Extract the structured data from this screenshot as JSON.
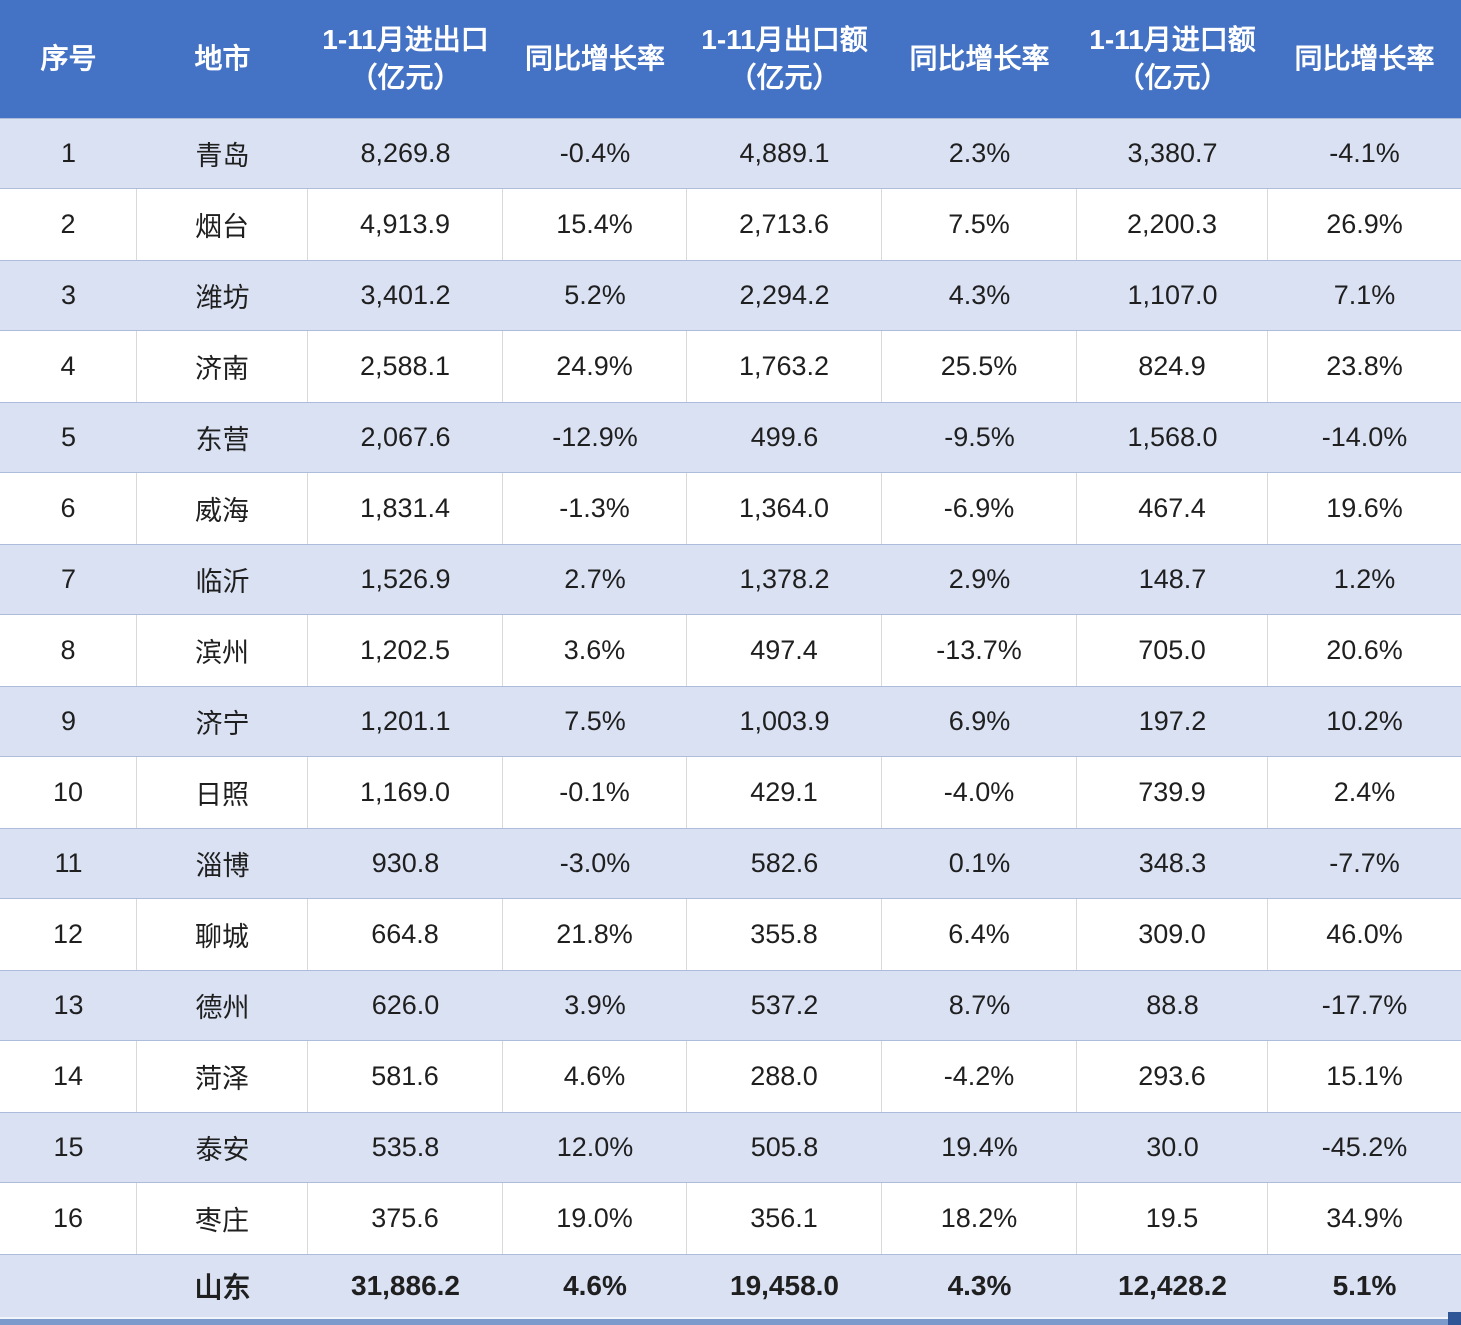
{
  "chart_data": {
    "type": "table",
    "title": "",
    "header": [
      {
        "line1": "序号",
        "line2": ""
      },
      {
        "line1": "地市",
        "line2": ""
      },
      {
        "line1": "1-11月进出口",
        "line2": "（亿元）"
      },
      {
        "line1": "同比增长率",
        "line2": ""
      },
      {
        "line1": "1-11月出口额",
        "line2": "（亿元）"
      },
      {
        "line1": "同比增长率",
        "line2": ""
      },
      {
        "line1": "1-11月进口额",
        "line2": "（亿元）"
      },
      {
        "line1": "同比增长率",
        "line2": ""
      }
    ],
    "rows": [
      [
        "1",
        "青岛",
        "8,269.8",
        "-0.4%",
        "4,889.1",
        "2.3%",
        "3,380.7",
        "-4.1%"
      ],
      [
        "2",
        "烟台",
        "4,913.9",
        "15.4%",
        "2,713.6",
        "7.5%",
        "2,200.3",
        "26.9%"
      ],
      [
        "3",
        "潍坊",
        "3,401.2",
        "5.2%",
        "2,294.2",
        "4.3%",
        "1,107.0",
        "7.1%"
      ],
      [
        "4",
        "济南",
        "2,588.1",
        "24.9%",
        "1,763.2",
        "25.5%",
        "824.9",
        "23.8%"
      ],
      [
        "5",
        "东营",
        "2,067.6",
        "-12.9%",
        "499.6",
        "-9.5%",
        "1,568.0",
        "-14.0%"
      ],
      [
        "6",
        "威海",
        "1,831.4",
        "-1.3%",
        "1,364.0",
        "-6.9%",
        "467.4",
        "19.6%"
      ],
      [
        "7",
        "临沂",
        "1,526.9",
        "2.7%",
        "1,378.2",
        "2.9%",
        "148.7",
        "1.2%"
      ],
      [
        "8",
        "滨州",
        "1,202.5",
        "3.6%",
        "497.4",
        "-13.7%",
        "705.0",
        "20.6%"
      ],
      [
        "9",
        "济宁",
        "1,201.1",
        "7.5%",
        "1,003.9",
        "6.9%",
        "197.2",
        "10.2%"
      ],
      [
        "10",
        "日照",
        "1,169.0",
        "-0.1%",
        "429.1",
        "-4.0%",
        "739.9",
        "2.4%"
      ],
      [
        "11",
        "淄博",
        "930.8",
        "-3.0%",
        "582.6",
        "0.1%",
        "348.3",
        "-7.7%"
      ],
      [
        "12",
        "聊城",
        "664.8",
        "21.8%",
        "355.8",
        "6.4%",
        "309.0",
        "46.0%"
      ],
      [
        "13",
        "德州",
        "626.0",
        "3.9%",
        "537.2",
        "8.7%",
        "88.8",
        "-17.7%"
      ],
      [
        "14",
        "菏泽",
        "581.6",
        "4.6%",
        "288.0",
        "-4.2%",
        "293.6",
        "15.1%"
      ],
      [
        "15",
        "泰安",
        "535.8",
        "12.0%",
        "505.8",
        "19.4%",
        "30.0",
        "-45.2%"
      ],
      [
        "16",
        "枣庄",
        "375.6",
        "19.0%",
        "356.1",
        "18.2%",
        "19.5",
        "34.9%"
      ]
    ],
    "footer": [
      "",
      "山东",
      "31,886.2",
      "4.6%",
      "19,458.0",
      "4.3%",
      "12,428.2",
      "5.1%"
    ],
    "layout": {
      "banded_rows": "odd",
      "grid": "partial",
      "align": "center"
    }
  },
  "colors": {
    "header_bg": "#4472C4",
    "header_text": "#FFFFFF",
    "band_row_bg": "#DAE1F3",
    "white_row_bg": "#FFFFFF",
    "gridline": "#D9D9D9",
    "band_edge": "#AEBCDC",
    "bottom_bar": "#7D9ACD",
    "fill_handle": "#2E5596",
    "text": "#1F1F1F"
  }
}
